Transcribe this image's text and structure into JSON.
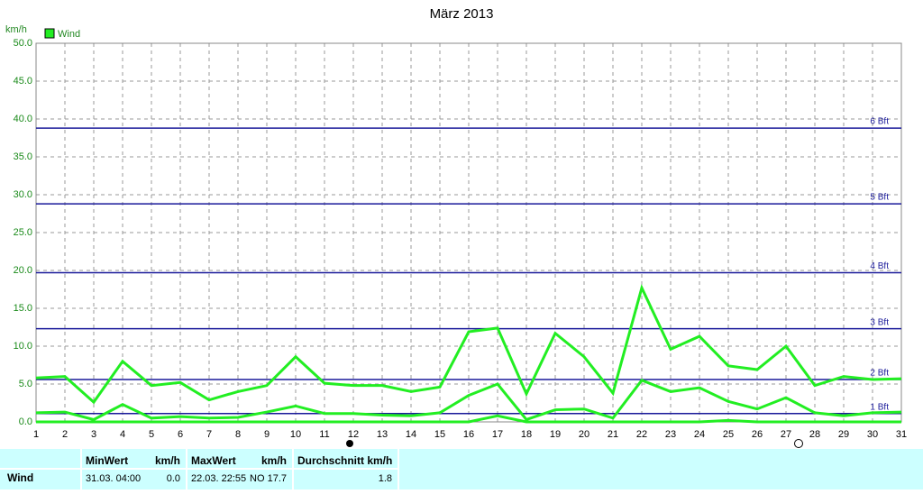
{
  "chart_data": {
    "type": "line",
    "title": "März 2013",
    "y_label": "km/h",
    "categories": [
      "1",
      "2",
      "3",
      "4",
      "5",
      "6",
      "7",
      "8",
      "9",
      "10",
      "11",
      "12",
      "13",
      "14",
      "15",
      "16",
      "17",
      "18",
      "19",
      "20",
      "21",
      "22",
      "23",
      "24",
      "25",
      "26",
      "27",
      "28",
      "29",
      "30",
      "31"
    ],
    "series": [
      {
        "name": "Wind",
        "color": "#22ee22",
        "values": [
          5.8,
          6.0,
          2.6,
          8.0,
          4.8,
          5.2,
          2.9,
          4.0,
          4.8,
          8.6,
          5.1,
          4.8,
          4.8,
          4.0,
          4.6,
          11.9,
          12.4,
          3.7,
          11.7,
          8.6,
          3.8,
          17.7,
          9.6,
          11.3,
          7.4,
          6.9,
          10.0,
          4.8,
          6.0,
          5.6,
          5.7
        ]
      },
      {
        "color": "#22ee22",
        "values": [
          1.2,
          1.3,
          0.3,
          2.3,
          0.5,
          0.7,
          0.5,
          0.6,
          1.3,
          2.1,
          1.1,
          1.1,
          0.9,
          0.8,
          1.2,
          3.5,
          5.0,
          0.3,
          1.6,
          1.7,
          0.5,
          5.5,
          4.0,
          4.5,
          2.7,
          1.7,
          3.2,
          1.2,
          0.8,
          1.2,
          1.3
        ]
      },
      {
        "color": "#22ee22",
        "values": [
          0,
          0,
          0,
          0,
          0,
          0,
          0,
          0,
          0,
          0,
          0,
          0,
          0,
          0,
          0,
          0,
          0.8,
          0,
          0,
          0,
          0,
          0,
          0,
          0,
          0.2,
          0,
          0,
          0,
          0,
          0,
          0
        ]
      }
    ],
    "ylim": [
      0,
      50
    ],
    "yticks": [
      {
        "value": 0,
        "label": "0.0"
      },
      {
        "value": 5,
        "label": "5.0"
      },
      {
        "value": 10,
        "label": "10.0"
      },
      {
        "value": 15,
        "label": "15.0"
      },
      {
        "value": 20,
        "label": "20.0"
      },
      {
        "value": 25,
        "label": "25.0"
      },
      {
        "value": 30,
        "label": "30.0"
      },
      {
        "value": 35,
        "label": "35.0"
      },
      {
        "value": 40,
        "label": "40.0"
      },
      {
        "value": 45,
        "label": "45.0"
      },
      {
        "value": 50,
        "label": "50.0"
      }
    ],
    "grid": true,
    "reference_lines": [
      {
        "value": 1.1,
        "label": "1 Bft"
      },
      {
        "value": 5.6,
        "label": "2 Bft"
      },
      {
        "value": 12.3,
        "label": "3 Bft"
      },
      {
        "value": 19.7,
        "label": "4 Bft"
      },
      {
        "value": 28.8,
        "label": "5 Bft"
      },
      {
        "value": 38.8,
        "label": "6 Bft"
      }
    ],
    "reference_color": "#1a1a9a"
  },
  "table": {
    "header": [
      "MinWert",
      "km/h",
      "MaxWert",
      "km/h",
      "Durchschnitt km/h"
    ],
    "rows": [
      [
        "Wind",
        "31.03. 04:00",
        "0.0",
        "22.03. 22:55",
        "NO 17.7",
        "1.8"
      ]
    ]
  }
}
